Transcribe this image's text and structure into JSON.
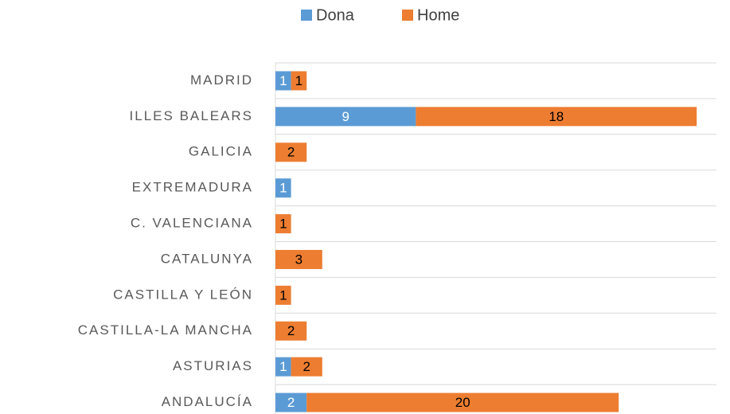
{
  "chart_data": {
    "type": "stacked_barh",
    "categories": [
      "MADRID",
      "ILLES BALEARS",
      "GALICIA",
      "EXTREMADURA",
      "C. VALENCIANA",
      "CATALUNYA",
      "CASTILLA Y LEÓN",
      "CASTILLA-LA MANCHA",
      "ASTURIAS",
      "ANDALUCÍA"
    ],
    "series": [
      {
        "name": "Dona",
        "color": "#5b9bd5",
        "label_color": "#ffffff",
        "values": [
          1,
          9,
          null,
          1,
          null,
          null,
          null,
          null,
          1,
          2
        ]
      },
      {
        "name": "Home",
        "color": "#ed7d31",
        "label_color": "#000000",
        "values": [
          1,
          18,
          2,
          null,
          1,
          3,
          1,
          2,
          2,
          20
        ]
      }
    ],
    "legend": "top",
    "grid": true
  }
}
